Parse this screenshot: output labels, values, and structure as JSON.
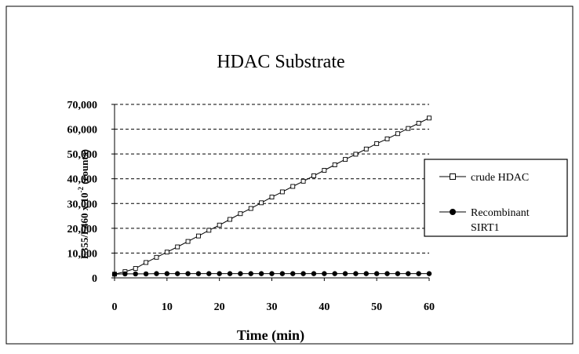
{
  "chart_data": {
    "type": "line",
    "title": "HDAC Substrate",
    "xlabel": "Time (min)",
    "ylabel_main": "F355/F460 x 10",
    "ylabel_exp": "-2",
    "ylabel_suffix": " (counts)",
    "xlim": [
      0,
      60
    ],
    "ylim": [
      0,
      70000
    ],
    "x_ticks": [
      0,
      10,
      20,
      30,
      40,
      50,
      60
    ],
    "x_tick_labels": [
      "0",
      "10",
      "20",
      "30",
      "40",
      "50",
      "60"
    ],
    "y_ticks": [
      0,
      10000,
      20000,
      30000,
      40000,
      50000,
      60000,
      70000
    ],
    "y_tick_labels": [
      "0",
      "10,000",
      "20,000",
      "30,000",
      "40,000",
      "50,000",
      "60,000",
      "70,000"
    ],
    "grid": "horizontal-dashed",
    "legend_position": "right",
    "series": [
      {
        "name": "crude HDAC",
        "marker": "open-square",
        "x": [
          0,
          2,
          4,
          6,
          8,
          10,
          12,
          14,
          16,
          18,
          20,
          22,
          24,
          26,
          28,
          30,
          32,
          34,
          36,
          38,
          40,
          42,
          44,
          46,
          48,
          50,
          52,
          54,
          56,
          58,
          60
        ],
        "y": [
          1500,
          2500,
          3800,
          6200,
          8300,
          10400,
          12500,
          14700,
          16900,
          19200,
          21300,
          23600,
          25900,
          28000,
          30300,
          32600,
          34700,
          36900,
          39000,
          41200,
          43400,
          45600,
          47800,
          49900,
          52000,
          54200,
          56100,
          58200,
          60300,
          62400,
          64500
        ]
      },
      {
        "name": "Recombinant SIRT1",
        "label_lines": [
          "Recombinant",
          "SIRT1"
        ],
        "marker": "filled-circle",
        "x": [
          0,
          2,
          4,
          6,
          8,
          10,
          12,
          14,
          16,
          18,
          20,
          22,
          24,
          26,
          28,
          30,
          32,
          34,
          36,
          38,
          40,
          42,
          44,
          46,
          48,
          50,
          52,
          54,
          56,
          58,
          60
        ],
        "y": [
          1500,
          1600,
          1600,
          1600,
          1700,
          1700,
          1700,
          1700,
          1700,
          1700,
          1700,
          1700,
          1700,
          1700,
          1700,
          1700,
          1700,
          1700,
          1700,
          1700,
          1700,
          1700,
          1700,
          1700,
          1700,
          1700,
          1700,
          1700,
          1700,
          1700,
          1700
        ]
      }
    ]
  }
}
